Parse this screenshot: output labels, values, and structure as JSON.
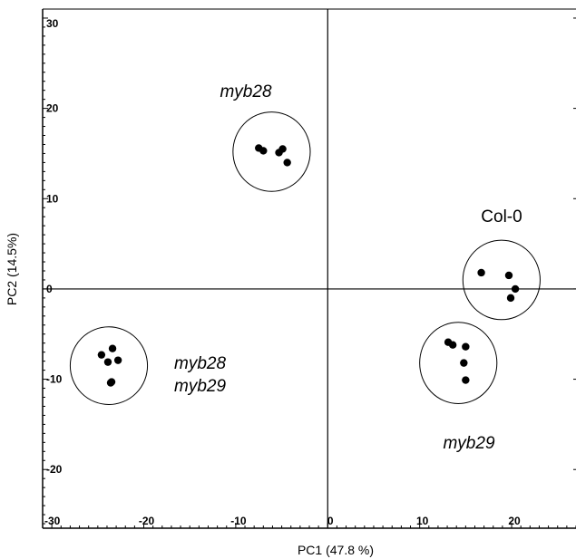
{
  "chart_data": {
    "type": "scatter",
    "title": "",
    "xlabel": "PC1 (47.8 %)",
    "ylabel": "PC2 (14.5%)",
    "xlim": [
      -31,
      27
    ],
    "ylim": [
      -26.5,
      31
    ],
    "x_ticks": [
      {
        "value": -30,
        "label": "-30"
      },
      {
        "value": -20,
        "label": "-20"
      },
      {
        "value": -10,
        "label": "-10"
      },
      {
        "value": 0,
        "label": "0"
      },
      {
        "value": 10,
        "label": "10"
      },
      {
        "value": 20,
        "label": "20"
      }
    ],
    "y_ticks": [
      {
        "value": 30,
        "label": "30"
      },
      {
        "value": 20,
        "label": "20"
      },
      {
        "value": 10,
        "label": "10"
      },
      {
        "value": 0,
        "label": "0"
      },
      {
        "value": -10,
        "label": "-10"
      },
      {
        "value": -20,
        "label": "-20"
      }
    ],
    "series": [
      {
        "label_lines": [
          "myb28"
        ],
        "italic": true,
        "ellipse": {
          "cx": -6.1,
          "cy": 15.2,
          "rx": 4.2,
          "ry": 4.4
        },
        "points": [
          [
            -7.5,
            15.6
          ],
          [
            -7.0,
            15.3
          ],
          [
            -5.3,
            15.1
          ],
          [
            -4.9,
            15.5
          ],
          [
            -4.4,
            14.0
          ]
        ]
      },
      {
        "label_lines": [
          "myb28",
          "myb29"
        ],
        "italic": true,
        "ellipse": {
          "cx": -23.8,
          "cy": -8.5,
          "rx": 4.2,
          "ry": 4.3
        },
        "points": [
          [
            -24.6,
            -7.3
          ],
          [
            -23.9,
            -8.1
          ],
          [
            -23.4,
            -6.6
          ],
          [
            -22.8,
            -7.9
          ],
          [
            -23.6,
            -10.4
          ],
          [
            -23.5,
            -10.3
          ]
        ]
      },
      {
        "label_lines": [
          "myb29"
        ],
        "italic": true,
        "ellipse": {
          "cx": 14.2,
          "cy": -8.2,
          "rx": 4.2,
          "ry": 4.5
        },
        "points": [
          [
            13.1,
            -5.9
          ],
          [
            13.6,
            -6.2
          ],
          [
            15.0,
            -6.4
          ],
          [
            14.8,
            -8.2
          ],
          [
            15.0,
            -10.1
          ]
        ]
      },
      {
        "label_lines": [
          "Col-0"
        ],
        "italic": false,
        "ellipse": {
          "cx": 18.9,
          "cy": 1.0,
          "rx": 4.2,
          "ry": 4.4
        },
        "points": [
          [
            16.7,
            1.8
          ],
          [
            19.7,
            1.5
          ],
          [
            20.4,
            0.0
          ],
          [
            19.9,
            -1.0
          ]
        ]
      }
    ],
    "grid": false,
    "legend": "none"
  }
}
